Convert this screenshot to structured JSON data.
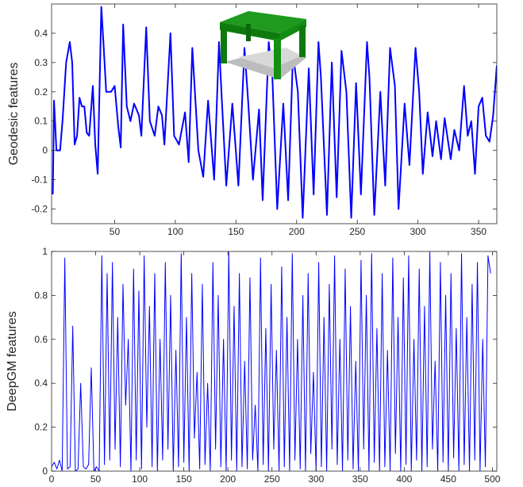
{
  "chart_data": [
    {
      "type": "line",
      "ylabel": "Geodesic features",
      "color": "#0000ff",
      "x": [
        -1,
        0,
        2,
        5,
        7,
        10,
        13,
        15,
        17,
        19,
        21,
        23,
        25,
        27,
        29,
        32,
        34,
        36,
        39,
        41,
        43,
        47,
        50,
        53,
        55,
        57,
        60,
        63,
        66,
        70,
        72,
        76,
        79,
        83,
        86,
        89,
        91,
        96,
        99,
        103,
        108,
        111,
        114,
        119,
        123,
        127,
        132,
        136,
        138,
        142,
        147,
        152,
        157,
        160,
        164,
        169,
        172,
        177,
        180,
        184,
        189,
        193,
        197,
        201,
        205,
        210,
        214,
        218,
        220,
        225,
        229,
        233,
        237,
        241,
        245,
        249,
        253,
        258,
        260,
        264,
        269,
        273,
        277,
        281,
        284,
        289,
        293,
        298,
        301,
        304,
        308,
        312,
        315,
        319,
        322,
        327,
        330,
        334,
        338,
        341,
        344,
        347,
        350,
        353,
        356,
        359,
        362,
        365
      ],
      "values": [
        -0.15,
        0.17,
        0.0,
        0.0,
        0.1,
        0.3,
        0.37,
        0.3,
        0.02,
        0.05,
        0.18,
        0.15,
        0.15,
        0.06,
        0.05,
        0.22,
        0.02,
        -0.08,
        0.49,
        0.35,
        0.2,
        0.2,
        0.22,
        0.08,
        0.01,
        0.43,
        0.15,
        0.1,
        0.16,
        0.12,
        0.05,
        0.42,
        0.1,
        0.05,
        0.15,
        0.12,
        0.02,
        0.4,
        0.05,
        0.02,
        0.13,
        -0.04,
        0.35,
        0.0,
        -0.09,
        0.17,
        -0.1,
        0.37,
        0.2,
        -0.12,
        0.16,
        -0.12,
        0.35,
        0.17,
        -0.1,
        0.14,
        -0.17,
        0.37,
        0.25,
        -0.2,
        0.16,
        -0.17,
        0.33,
        0.2,
        -0.23,
        0.28,
        -0.15,
        0.37,
        0.25,
        -0.22,
        0.3,
        -0.16,
        0.34,
        0.2,
        -0.23,
        0.23,
        -0.15,
        0.37,
        0.25,
        -0.22,
        0.2,
        -0.12,
        0.35,
        0.22,
        -0.2,
        0.16,
        -0.05,
        0.35,
        0.2,
        -0.08,
        0.13,
        -0.02,
        0.1,
        -0.03,
        0.11,
        -0.03,
        0.07,
        0.0,
        0.22,
        0.05,
        0.1,
        -0.08,
        0.15,
        0.18,
        0.05,
        0.03,
        0.12,
        0.29
      ],
      "xlim": [
        -2,
        365
      ],
      "ylim": [
        -0.25,
        0.5
      ],
      "xticks": [
        50,
        100,
        150,
        200,
        250,
        300,
        350
      ],
      "yticks": [
        -0.2,
        -0.1,
        0,
        0.1,
        0.2,
        0.3,
        0.4
      ]
    },
    {
      "type": "line",
      "ylabel": "DeepGM features",
      "color": "#0000ff",
      "x": [
        0,
        3,
        6,
        9,
        12,
        15,
        18,
        21,
        24,
        27,
        30,
        33,
        36,
        39,
        42,
        45,
        48,
        51,
        54,
        57,
        60,
        63,
        66,
        69,
        72,
        75,
        78,
        81,
        84,
        87,
        90,
        93,
        96,
        99,
        102,
        105,
        108,
        111,
        114,
        117,
        120,
        123,
        126,
        129,
        132,
        135,
        138,
        141,
        144,
        147,
        150,
        153,
        156,
        159,
        162,
        165,
        168,
        171,
        174,
        177,
        180,
        183,
        186,
        189,
        192,
        195,
        198,
        201,
        204,
        207,
        210,
        213,
        216,
        219,
        222,
        225,
        228,
        231,
        234,
        237,
        240,
        243,
        246,
        249,
        252,
        255,
        258,
        261,
        264,
        267,
        270,
        273,
        276,
        279,
        282,
        285,
        288,
        291,
        294,
        297,
        300,
        303,
        306,
        309,
        312,
        315,
        318,
        321,
        324,
        327,
        330,
        333,
        336,
        339,
        342,
        345,
        348,
        351,
        354,
        357,
        360,
        363,
        366,
        369,
        372,
        375,
        378,
        381,
        384,
        387,
        390,
        393,
        396,
        399,
        402,
        405,
        408,
        411,
        414,
        417,
        420,
        423,
        426,
        429,
        432,
        435,
        438,
        441,
        444,
        447,
        450,
        453,
        456,
        459,
        462,
        465,
        468,
        471,
        474,
        477,
        480,
        483,
        486,
        489,
        492,
        495,
        498
      ],
      "values": [
        0.02,
        0.04,
        0.01,
        0.05,
        0.0,
        0.97,
        0.01,
        0.02,
        0.66,
        0.0,
        0.01,
        0.4,
        0.02,
        0.01,
        0.03,
        0.47,
        0.0,
        0.02,
        0.0,
        0.98,
        0.03,
        0.9,
        0.05,
        0.95,
        0.1,
        0.7,
        0.02,
        0.85,
        0.3,
        0.6,
        0.0,
        0.92,
        0.05,
        0.82,
        0.01,
        0.98,
        0.2,
        0.75,
        0.02,
        0.9,
        0.0,
        0.6,
        0.05,
        0.95,
        0.1,
        0.8,
        0.0,
        0.55,
        0.02,
        0.99,
        0.04,
        0.7,
        0.0,
        0.9,
        0.15,
        0.45,
        0.01,
        0.85,
        0.03,
        0.4,
        0.0,
        0.95,
        0.1,
        0.8,
        0.02,
        0.6,
        0.0,
        1.0,
        0.05,
        0.75,
        0.0,
        0.9,
        0.02,
        0.5,
        0.01,
        0.88,
        0.05,
        0.3,
        0.0,
        0.97,
        0.03,
        0.65,
        0.0,
        0.85,
        0.1,
        0.55,
        0.0,
        0.93,
        0.02,
        0.7,
        0.0,
        0.99,
        0.05,
        0.6,
        0.01,
        0.8,
        0.0,
        0.9,
        0.08,
        0.45,
        0.0,
        0.95,
        0.02,
        0.7,
        0.0,
        0.85,
        0.1,
        0.98,
        0.03,
        0.6,
        0.0,
        0.92,
        0.05,
        0.75,
        0.01,
        0.5,
        0.0,
        0.96,
        0.1,
        0.8,
        0.0,
        0.99,
        0.04,
        0.65,
        0.0,
        0.9,
        0.02,
        0.55,
        0.0,
        0.97,
        0.08,
        0.7,
        0.0,
        0.88,
        0.03,
        0.98,
        0.0,
        0.6,
        0.05,
        0.92,
        0.0,
        0.75,
        0.02,
        1.0,
        0.1,
        0.5,
        0.0,
        0.95,
        0.04,
        0.8,
        0.0,
        0.9,
        0.06,
        0.65,
        0.0,
        0.99,
        0.03,
        0.7,
        0.0,
        0.85,
        0.05,
        0.95,
        0.0,
        0.6,
        0.02,
        0.98,
        0.9
      ],
      "xlim": [
        0,
        505
      ],
      "ylim": [
        0,
        1
      ],
      "xticks": [
        0,
        50,
        100,
        150,
        200,
        250,
        300,
        350,
        400,
        450,
        500
      ],
      "yticks": [
        0,
        0.2,
        0.4,
        0.6,
        0.8,
        1
      ]
    }
  ]
}
